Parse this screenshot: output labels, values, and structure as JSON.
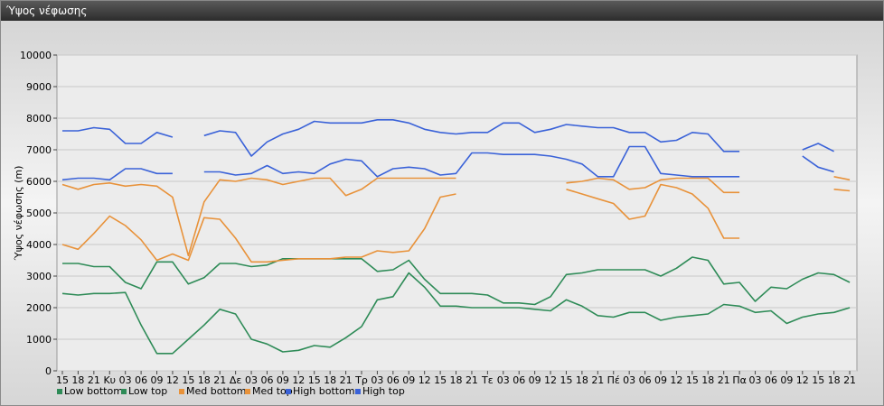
{
  "window": {
    "title": "Ύψος νέφωσης"
  },
  "chart_data": {
    "type": "line",
    "ylabel": "Ύψος νέφωσης (m)",
    "ylim": [
      0,
      10000
    ],
    "yticks": [
      0,
      1000,
      2000,
      3000,
      4000,
      5000,
      6000,
      7000,
      8000,
      9000,
      10000
    ],
    "grid": "horizontal",
    "legend": "bottom-left",
    "categories": [
      "15",
      "18",
      "21",
      "Κυ",
      "03",
      "06",
      "09",
      "12",
      "15",
      "18",
      "21",
      "Δε",
      "03",
      "06",
      "09",
      "12",
      "15",
      "18",
      "21",
      "Τρ",
      "03",
      "06",
      "09",
      "12",
      "15",
      "18",
      "21",
      "Τε",
      "03",
      "06",
      "09",
      "12",
      "15",
      "18",
      "21",
      "Πέ",
      "03",
      "06",
      "09",
      "12",
      "15",
      "18",
      "21",
      "Πα",
      "03",
      "06",
      "09",
      "12",
      "15",
      "18",
      "21"
    ],
    "series": [
      {
        "name": "Low bottom",
        "color": "#2e8b57",
        "values": [
          2450,
          2400,
          2450,
          2450,
          2480,
          1450,
          550,
          550,
          1000,
          1450,
          1950,
          1800,
          1000,
          850,
          600,
          650,
          800,
          750,
          1050,
          1400,
          2250,
          2350,
          3100,
          2650,
          2050,
          2050,
          2000,
          2000,
          2000,
          2000,
          1950,
          1900,
          2250,
          2050,
          1750,
          1700,
          1850,
          1850,
          1600,
          1700,
          1750,
          1800,
          2100,
          2050,
          1850,
          1900,
          1500,
          1700,
          1800,
          1850,
          2000
        ]
      },
      {
        "name": "Low top",
        "color": "#2e8b57",
        "values": [
          3400,
          3400,
          3300,
          3300,
          2800,
          2600,
          3450,
          3450,
          2750,
          2950,
          3400,
          3400,
          3300,
          3350,
          3550,
          3550,
          3550,
          3550,
          3550,
          3550,
          3150,
          3200,
          3500,
          2900,
          2450,
          2450,
          2450,
          2400,
          2150,
          2150,
          2100,
          2350,
          3050,
          3100,
          3200,
          3200,
          3200,
          3200,
          3000,
          3250,
          3600,
          3500,
          2750,
          2800,
          2200,
          2650,
          2600,
          2900,
          3100,
          3050,
          2800
        ]
      },
      {
        "name": "Med bottom",
        "color": "#e8923a",
        "values": [
          4000,
          3850,
          4350,
          4900,
          4600,
          4150,
          3500,
          3700,
          3500,
          4850,
          4800,
          4200,
          3450,
          3450,
          3500,
          3550,
          3550,
          3550,
          3600,
          3600,
          3800,
          3750,
          3800,
          4500,
          5500,
          5600,
          null,
          null,
          null,
          null,
          null,
          null,
          5750,
          5600,
          5450,
          5300,
          4800,
          4900,
          5900,
          5800,
          5600,
          5150,
          4200,
          4200,
          null,
          null,
          null,
          null,
          null,
          5750,
          5700
        ]
      },
      {
        "name": "Med top",
        "color": "#e8923a",
        "values": [
          5900,
          5750,
          5900,
          5950,
          5850,
          5900,
          5850,
          5500,
          3650,
          5350,
          6050,
          6000,
          6100,
          6050,
          5900,
          6000,
          6100,
          6100,
          5550,
          5750,
          6100,
          6100,
          6100,
          6100,
          6100,
          6100,
          null,
          null,
          null,
          null,
          null,
          null,
          5950,
          6000,
          6100,
          6050,
          5750,
          5800,
          6050,
          6100,
          6100,
          6100,
          5650,
          5650,
          null,
          null,
          null,
          null,
          null,
          6150,
          6050
        ]
      },
      {
        "name": "High bottom",
        "color": "#3a62d8",
        "values": [
          6050,
          6100,
          6100,
          6050,
          6400,
          6400,
          6250,
          6250,
          null,
          6300,
          6300,
          6200,
          6250,
          6500,
          6250,
          6300,
          6250,
          6550,
          6700,
          6650,
          6150,
          6400,
          6450,
          6400,
          6200,
          6250,
          6900,
          6900,
          6850,
          6850,
          6850,
          6800,
          6700,
          6550,
          6150,
          6150,
          7100,
          7100,
          6250,
          6200,
          6150,
          6150,
          6150,
          6150,
          null,
          null,
          null,
          6800,
          6450,
          6300,
          null
        ]
      },
      {
        "name": "High top",
        "color": "#3a62d8",
        "values": [
          7600,
          7600,
          7700,
          7650,
          7200,
          7200,
          7550,
          7400,
          null,
          7450,
          7600,
          7550,
          6800,
          7250,
          7500,
          7650,
          7900,
          7850,
          7850,
          7850,
          7950,
          7950,
          7850,
          7650,
          7550,
          7500,
          7550,
          7550,
          7850,
          7850,
          7550,
          7650,
          7800,
          7750,
          7700,
          7700,
          7550,
          7550,
          7250,
          7300,
          7550,
          7500,
          6950,
          6950,
          null,
          null,
          null,
          7000,
          7200,
          6950,
          null
        ]
      }
    ]
  }
}
